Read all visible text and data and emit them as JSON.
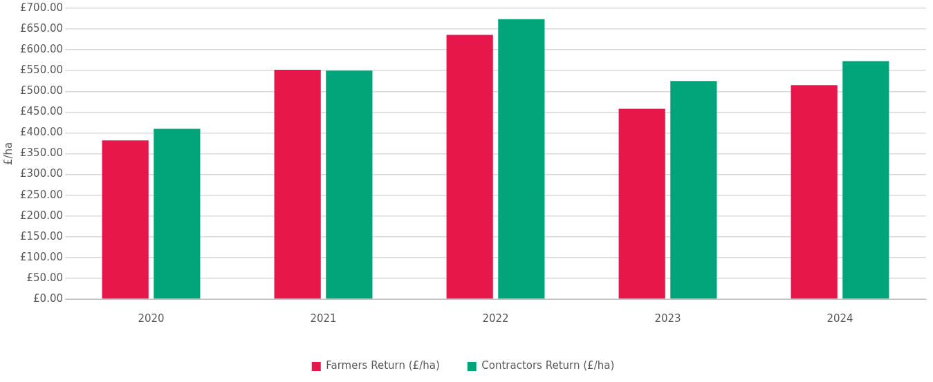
{
  "chart_data": {
    "type": "bar",
    "ylabel": "£/ha",
    "categories": [
      "2020",
      "2021",
      "2022",
      "2023",
      "2024"
    ],
    "series": [
      {
        "name": "Farmers Return (£/ha)",
        "color": "#e8174b",
        "values": [
          382,
          552,
          636,
          458,
          515
        ]
      },
      {
        "name": "Contractors Return (£/ha)",
        "color": "#02a57a",
        "values": [
          410,
          550,
          674,
          525,
          573
        ]
      }
    ],
    "ylim": [
      0,
      700
    ],
    "yticks": [
      {
        "value": 0,
        "label": "£0.00"
      },
      {
        "value": 50,
        "label": "£50.00"
      },
      {
        "value": 100,
        "label": "£100.00"
      },
      {
        "value": 150,
        "label": "£150.00"
      },
      {
        "value": 200,
        "label": "£200.00"
      },
      {
        "value": 250,
        "label": "£250.00"
      },
      {
        "value": 300,
        "label": "£300.00"
      },
      {
        "value": 350,
        "label": "£350.00"
      },
      {
        "value": 400,
        "label": "£400.00"
      },
      {
        "value": 450,
        "label": "£450.00"
      },
      {
        "value": 500,
        "label": "£500.00"
      },
      {
        "value": 550,
        "label": "£550.00"
      },
      {
        "value": 600,
        "label": "£600.00"
      },
      {
        "value": 650,
        "label": "£650.00"
      },
      {
        "value": 700,
        "label": "£700.00"
      }
    ],
    "grid": "y",
    "legend": "bottom"
  }
}
